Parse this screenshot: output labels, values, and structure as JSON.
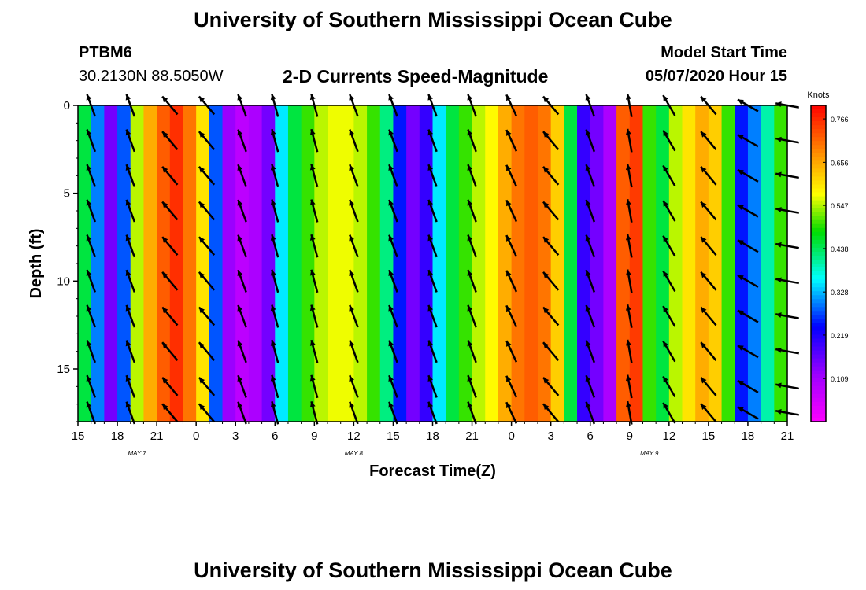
{
  "header": {
    "title": "University of Southern Mississippi Ocean Cube",
    "station": "PTBM6",
    "coords": "30.2130N 88.5050W",
    "product": "2-D Currents Speed-Magnitude",
    "start_label": "Model Start Time",
    "start_value": "05/07/2020 Hour 15"
  },
  "footer": {
    "title": "University of Southern Mississippi Ocean Cube"
  },
  "chart_data": {
    "type": "heatmap",
    "title": "2-D Currents Speed-Magnitude",
    "xlabel": "Forecast Time(Z)",
    "ylabel": "Depth (ft)",
    "x_ticks": [
      "15",
      "18",
      "21",
      "0",
      "3",
      "6",
      "9",
      "12",
      "15",
      "18",
      "21",
      "0",
      "3",
      "6",
      "9",
      "12",
      "15",
      "18",
      "21"
    ],
    "x_tick_hours": [
      0,
      3,
      6,
      9,
      12,
      15,
      18,
      21,
      24,
      27,
      30,
      33,
      36,
      39,
      42,
      45,
      48,
      51,
      54
    ],
    "x_range_hours": [
      0,
      54
    ],
    "date_labels": [
      {
        "label": "MAY 7",
        "hour": 4.5
      },
      {
        "label": "MAY 8",
        "hour": 21
      },
      {
        "label": "MAY 9",
        "hour": 43.5
      }
    ],
    "y_ticks": [
      0,
      5,
      10,
      15
    ],
    "y_range": [
      0,
      18
    ],
    "y_inverted": true,
    "colorbar": {
      "units": "Knots",
      "min": 0.0,
      "max": 0.8,
      "ticks": [
        "0.766",
        "0.656",
        "0.547",
        "0.438",
        "0.328",
        "0.219",
        "0.109"
      ],
      "tick_values": [
        0.766,
        0.656,
        0.547,
        0.438,
        0.328,
        0.219,
        0.109
      ]
    },
    "column_hours": [
      0.5,
      1.5,
      2.5,
      3.5,
      4.5,
      5.5,
      6.5,
      7.5,
      8.5,
      9.5,
      10.5,
      11.5,
      12.5,
      13.5,
      14.5,
      15.5,
      16.5,
      17.5,
      18.5,
      19.5,
      20.5,
      21.5,
      22.5,
      23.5,
      24.5,
      25.5,
      26.5,
      27.5,
      28.5,
      29.5,
      30.5,
      31.5,
      32.5,
      33.5,
      34.5,
      35.5,
      36.5,
      37.5,
      38.5,
      39.5,
      40.5,
      41.5,
      42.5,
      43.5,
      44.5,
      45.5,
      46.5,
      47.5,
      48.5,
      49.5,
      50.5,
      51.5,
      52.5,
      53.5
    ],
    "column_speeds_knots": [
      0.45,
      0.3,
      0.15,
      0.28,
      0.55,
      0.65,
      0.72,
      0.76,
      0.7,
      0.6,
      0.28,
      0.12,
      0.08,
      0.1,
      0.15,
      0.35,
      0.45,
      0.5,
      0.55,
      0.57,
      0.57,
      0.55,
      0.5,
      0.42,
      0.25,
      0.15,
      0.2,
      0.35,
      0.45,
      0.5,
      0.55,
      0.58,
      0.65,
      0.7,
      0.72,
      0.7,
      0.62,
      0.45,
      0.2,
      0.15,
      0.1,
      0.72,
      0.75,
      0.5,
      0.45,
      0.55,
      0.6,
      0.65,
      0.62,
      0.5,
      0.25,
      0.3,
      0.4,
      0.5
    ],
    "arrow_rows_ft": [
      0,
      2,
      4,
      6,
      8,
      10,
      12,
      14,
      16,
      17.5
    ],
    "arrow_columns_hours": [
      1,
      4,
      7,
      9.8,
      12.5,
      15,
      18,
      21,
      24,
      27,
      30,
      33,
      36,
      39,
      42,
      45,
      48,
      51,
      54
    ],
    "arrow_directions_deg": [
      -20,
      -20,
      -40,
      -40,
      -20,
      -15,
      -15,
      -20,
      -20,
      -20,
      -20,
      -25,
      -40,
      -20,
      -10,
      -30,
      -40,
      -60,
      -80
    ]
  }
}
